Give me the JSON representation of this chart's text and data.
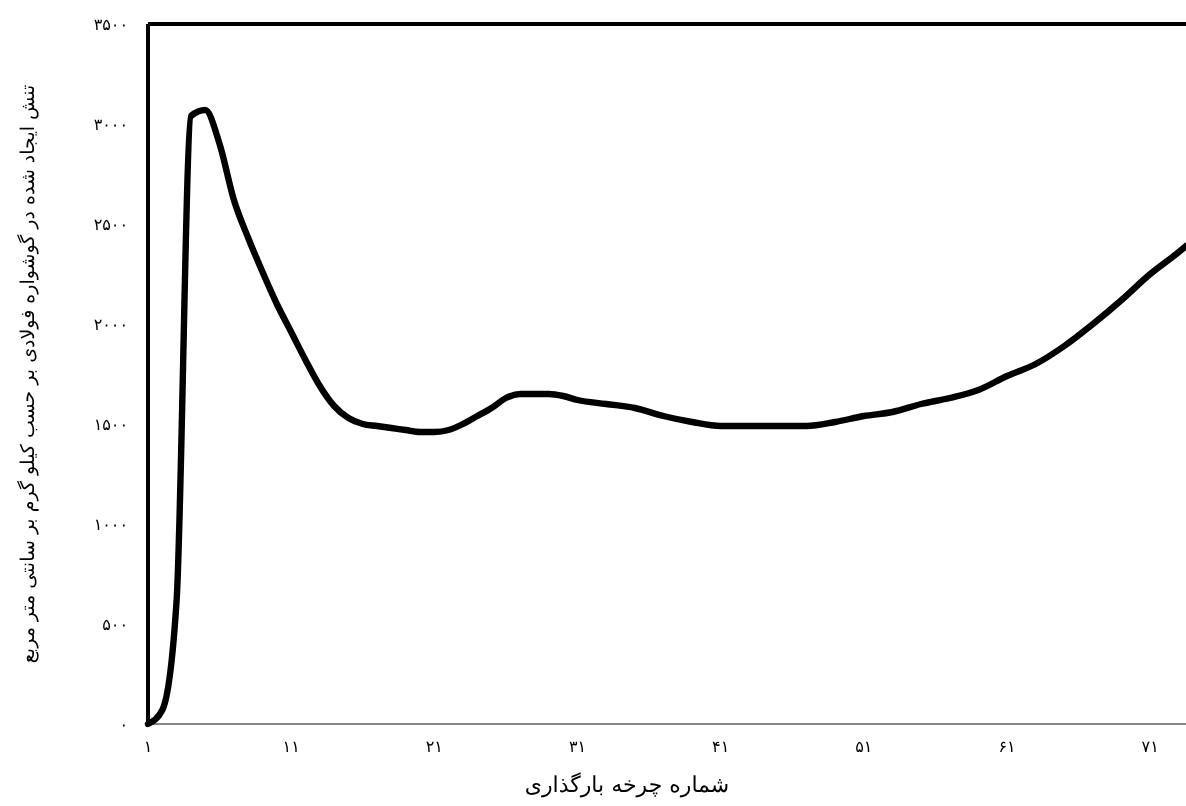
{
  "chart_data": {
    "type": "line",
    "xlabel": "شماره چرخه بارگذاری",
    "ylabel": "تنش ایجاد شده در گوشواره فولادی بر حسب کیلو گرم بر سانتی متر مربع",
    "xlim": [
      1,
      73.5
    ],
    "ylim": [
      0,
      3500
    ],
    "xticks": [
      {
        "value": 1,
        "label": "۱"
      },
      {
        "value": 11,
        "label": "۱۱"
      },
      {
        "value": 21,
        "label": "۲۱"
      },
      {
        "value": 31,
        "label": "۳۱"
      },
      {
        "value": 41,
        "label": "۴۱"
      },
      {
        "value": 51,
        "label": "۵۱"
      },
      {
        "value": 61,
        "label": "۶۱"
      },
      {
        "value": 71,
        "label": "۷۱"
      }
    ],
    "yticks": [
      {
        "value": 0,
        "label": "۰"
      },
      {
        "value": 500,
        "label": "۵۰۰"
      },
      {
        "value": 1000,
        "label": "۱۰۰۰"
      },
      {
        "value": 1500,
        "label": "۱۵۰۰"
      },
      {
        "value": 2000,
        "label": "۲۰۰۰"
      },
      {
        "value": 2500,
        "label": "۲۵۰۰"
      },
      {
        "value": 3000,
        "label": "۳۰۰۰"
      },
      {
        "value": 3500,
        "label": "۳۵۰۰"
      }
    ],
    "grid": false,
    "marker": "none",
    "line_style": "solid",
    "series": [
      {
        "color": "#000000",
        "x": [
          1,
          2,
          3,
          4,
          5,
          6,
          7,
          8,
          9,
          10,
          11,
          12,
          13,
          14,
          15,
          16,
          17,
          18,
          19,
          20,
          21,
          22,
          23,
          24,
          25,
          26,
          27,
          28,
          29,
          30,
          31,
          33,
          35,
          37,
          39,
          41,
          43,
          45,
          47,
          49,
          51,
          53,
          55,
          57,
          59,
          61,
          63,
          65,
          67,
          69,
          71,
          73,
          73.5
        ],
        "values": [
          0,
          70,
          620,
          3040,
          3070,
          2900,
          2620,
          2430,
          2260,
          2100,
          1960,
          1820,
          1690,
          1590,
          1530,
          1500,
          1490,
          1480,
          1470,
          1460,
          1460,
          1470,
          1500,
          1540,
          1580,
          1630,
          1650,
          1650,
          1650,
          1640,
          1620,
          1600,
          1580,
          1540,
          1510,
          1490,
          1490,
          1490,
          1490,
          1510,
          1540,
          1560,
          1600,
          1630,
          1670,
          1740,
          1800,
          1890,
          2000,
          2120,
          2250,
          2360,
          2390
        ]
      }
    ]
  }
}
